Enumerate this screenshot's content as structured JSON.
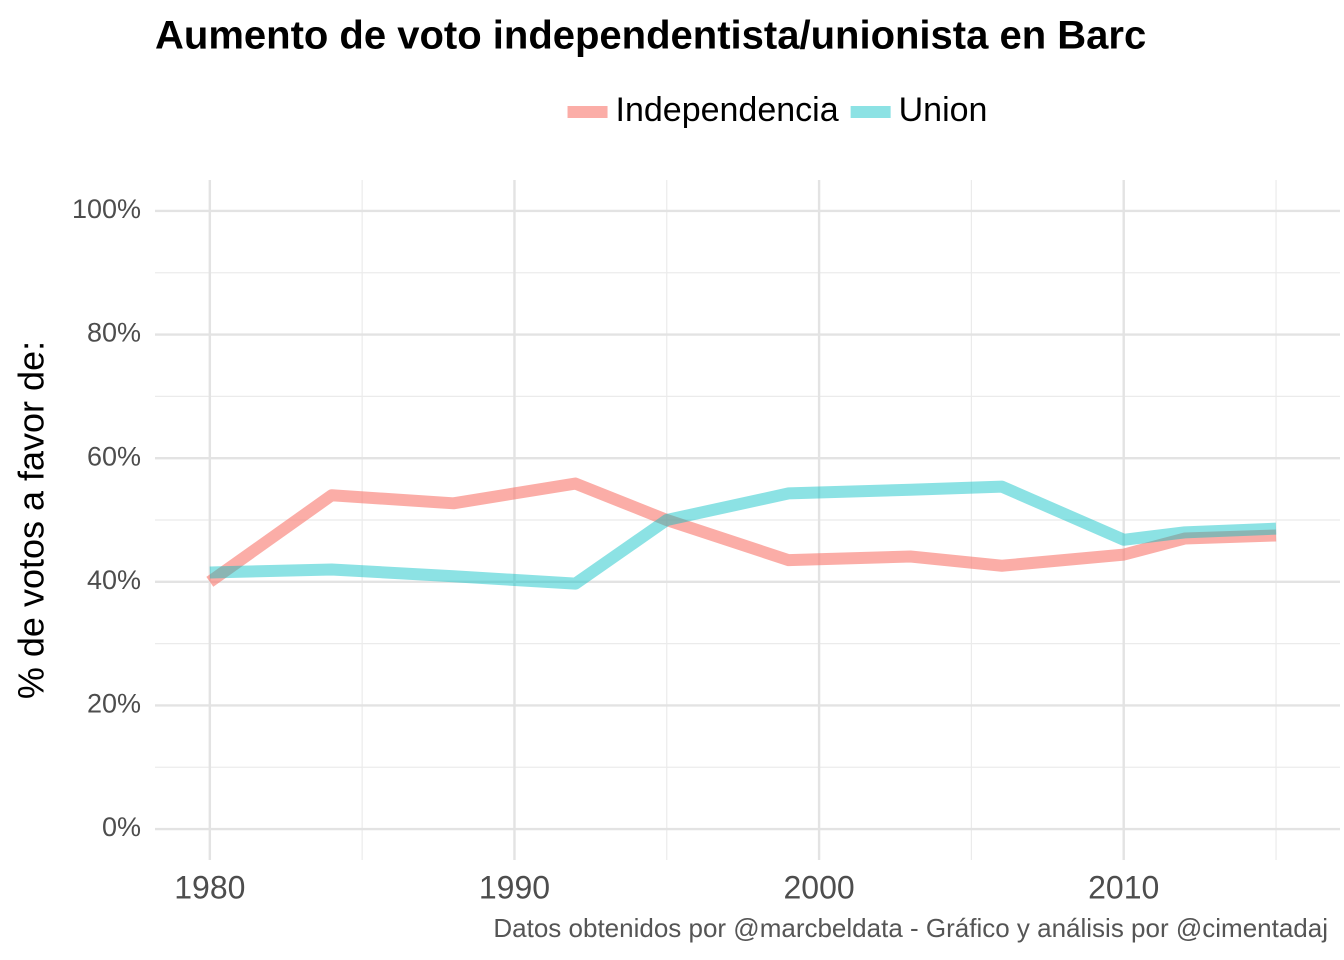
{
  "chart_data": {
    "type": "line",
    "title": "Aumento de voto independentista/unionista en Barc",
    "y_label": "% de votos a favor de:",
    "caption": "Datos obtenidos por @marcbeldata - Gráfico y análisis por @cimentadaj",
    "x": [
      1980,
      1984,
      1988,
      1992,
      1995,
      1999,
      2003,
      2006,
      2010,
      2012,
      2015
    ],
    "series": [
      {
        "name": "Independencia",
        "color": "#F8766D",
        "values": [
          40,
          54,
          52.7,
          55.9,
          50,
          43.5,
          44.1,
          42.6,
          44.4,
          47,
          47.5
        ]
      },
      {
        "name": "Union",
        "color": "#00BFC4",
        "values": [
          41.5,
          42,
          40.9,
          39.7,
          50,
          54.3,
          54.9,
          55.4,
          46.8,
          48,
          48.6
        ]
      }
    ],
    "xlim": [
      1978.2,
      2017.1
    ],
    "xticks": [
      1980,
      1990,
      2000,
      2010
    ],
    "minor_xticks": [
      1985,
      1995,
      2005,
      2015
    ],
    "ylim": [
      -5,
      105
    ],
    "yticks": [
      {
        "value": 0,
        "label": "0%"
      },
      {
        "value": 20,
        "label": "20%"
      },
      {
        "value": 40,
        "label": "40%"
      },
      {
        "value": 60,
        "label": "60%"
      },
      {
        "value": 80,
        "label": "80%"
      },
      {
        "value": 100,
        "label": "100%"
      }
    ],
    "minor_yticks": [
      10,
      30,
      50,
      70,
      90
    ],
    "grid": true,
    "legend": "top"
  }
}
